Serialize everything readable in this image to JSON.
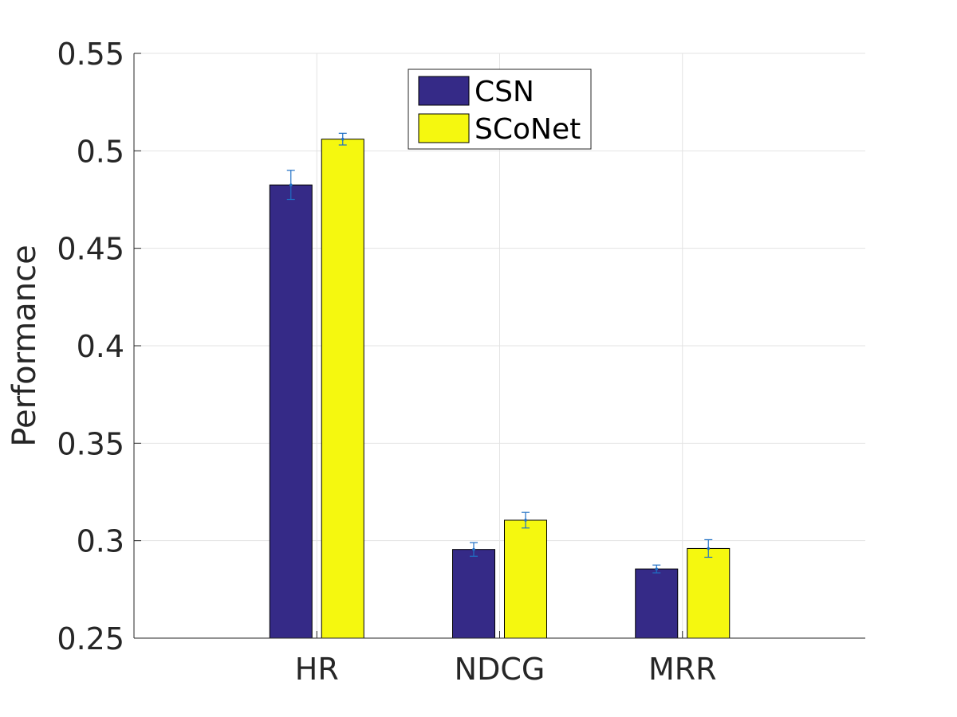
{
  "chart_data": {
    "type": "bar",
    "title": "",
    "xlabel": "",
    "ylabel": "Performance",
    "ylim": [
      0.25,
      0.55
    ],
    "yticks": [
      "0.25",
      "0.3",
      "0.35",
      "0.4",
      "0.45",
      "0.5",
      "0.55"
    ],
    "grid": true,
    "legend_position": "top-center",
    "categories": [
      "HR",
      "NDCG",
      "MRR"
    ],
    "series": [
      {
        "name": "CSN",
        "color": "#352a87",
        "values": [
          0.4825,
          0.2955,
          0.2855
        ],
        "error": [
          0.0075,
          0.0035,
          0.002
        ]
      },
      {
        "name": "SCoNet",
        "color": "#f5f80f",
        "values": [
          0.506,
          0.3105,
          0.296
        ],
        "error": [
          0.003,
          0.004,
          0.0045
        ]
      }
    ],
    "errorbar_color": "#1f6fc4"
  }
}
